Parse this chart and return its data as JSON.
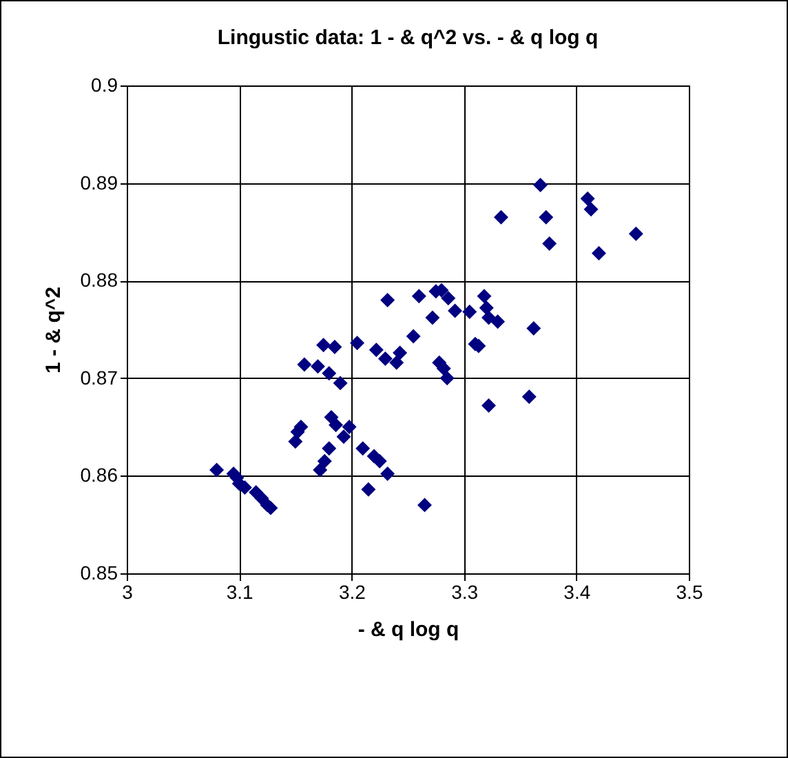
{
  "chart_data": {
    "type": "scatter",
    "title": "Lingustic data: 1 - & q^2   vs.   - & q log q",
    "xlabel": "- & q log q",
    "ylabel": "1 - & q^2",
    "x": [
      3.08,
      3.095,
      3.098,
      3.1,
      3.105,
      3.115,
      3.12,
      3.125,
      3.128,
      3.15,
      3.152,
      3.155,
      3.158,
      3.17,
      3.175,
      3.18,
      3.185,
      3.19,
      3.172,
      3.176,
      3.18,
      3.182,
      3.186,
      3.193,
      3.198,
      3.205,
      3.21,
      3.215,
      3.22,
      3.222,
      3.225,
      3.23,
      3.232,
      3.232,
      3.24,
      3.243,
      3.255,
      3.26,
      3.265,
      3.272,
      3.275,
      3.278,
      3.28,
      3.282,
      3.285,
      3.286,
      3.292,
      3.305,
      3.31,
      3.313,
      3.318,
      3.32,
      3.322,
      3.322,
      3.33,
      3.333,
      3.358,
      3.362,
      3.368,
      3.373,
      3.376,
      3.41,
      3.413,
      3.42,
      3.453
    ],
    "series": [
      {
        "color": "#000080",
        "values": [
          0.8606,
          0.8602,
          0.8598,
          0.8592,
          0.8588,
          0.8583,
          0.8577,
          0.857,
          0.8567,
          0.8635,
          0.8645,
          0.865,
          0.8714,
          0.8712,
          0.8734,
          0.8705,
          0.8732,
          0.8695,
          0.8606,
          0.8615,
          0.8628,
          0.866,
          0.8652,
          0.864,
          0.865,
          0.8736,
          0.8628,
          0.8586,
          0.862,
          0.8729,
          0.8615,
          0.872,
          0.8602,
          0.878,
          0.8716,
          0.8726,
          0.8743,
          0.8784,
          0.857,
          0.8762,
          0.8789,
          0.8716,
          0.879,
          0.871,
          0.87,
          0.8782,
          0.8769,
          0.8768,
          0.8735,
          0.8733,
          0.8784,
          0.8772,
          0.8762,
          0.8672,
          0.8758,
          0.8865,
          0.8681,
          0.8751,
          0.8898,
          0.8865,
          0.8838,
          0.8884,
          0.8873,
          0.8828,
          0.8848
        ]
      }
    ],
    "xlim": [
      3,
      3.5
    ],
    "xticks": [
      3,
      3.1,
      3.2,
      3.3,
      3.4,
      3.5
    ],
    "ylim": [
      0.85,
      0.9
    ],
    "yticks": [
      0.85,
      0.86,
      0.87,
      0.88,
      0.89,
      0.9
    ],
    "grid": true,
    "marker": "diamond"
  }
}
